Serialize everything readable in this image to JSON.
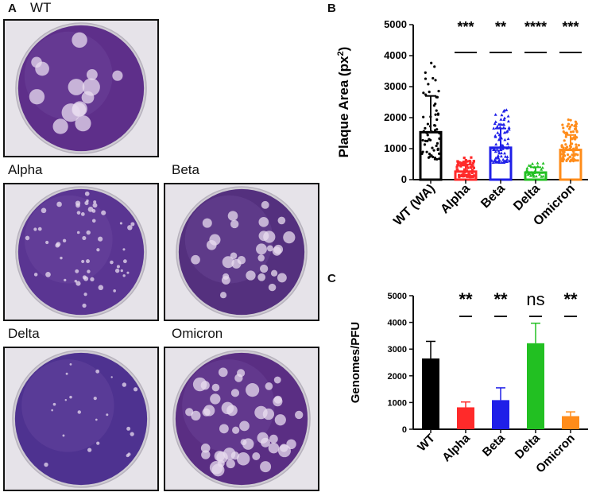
{
  "panel_labels": {
    "a": "A",
    "b": "B",
    "c": "C"
  },
  "plates": [
    {
      "label": "WT",
      "tint": "#5e2f8a",
      "density": "sparse-large"
    },
    {
      "label": "Alpha",
      "tint": "#5a3592",
      "density": "many-small"
    },
    {
      "label": "Beta",
      "tint": "#54307e",
      "density": "medium"
    },
    {
      "label": "Delta",
      "tint": "#4e3290",
      "density": "few-small"
    },
    {
      "label": "Omicron",
      "tint": "#5a2e83",
      "density": "many-medium"
    }
  ],
  "colors": {
    "WT": "#000000",
    "Alpha": "#ff2a2a",
    "Beta": "#1f1fe8",
    "Delta": "#22c022",
    "Omicron": "#ff8c1a"
  },
  "chart_data": [
    {
      "panel": "B",
      "type": "bar",
      "ylabel_main": "Plaque Area (px",
      "ylabel_sup": "2",
      "ylabel_close": ")",
      "ylim": [
        0,
        5000
      ],
      "yticks": [
        "0",
        "1000",
        "2000",
        "3000",
        "4000",
        "5000"
      ],
      "categories": [
        "WT (WA)",
        "Alpha",
        "Beta",
        "Delta",
        "Omicron"
      ],
      "values": [
        1530,
        260,
        1030,
        230,
        960
      ],
      "error": [
        1170,
        230,
        620,
        170,
        480
      ],
      "significance": [
        "",
        "***",
        "**",
        "****",
        "***"
      ],
      "points_shown": true
    },
    {
      "panel": "C",
      "type": "bar",
      "ylabel": "Genomes/PFU",
      "ylim": [
        0,
        5000
      ],
      "yticks": [
        "0",
        "1000",
        "2000",
        "3000",
        "4000",
        "5000"
      ],
      "categories": [
        "WT",
        "Alpha",
        "Beta",
        "Delta",
        "Omicron"
      ],
      "values": [
        2650,
        820,
        1090,
        3220,
        490
      ],
      "error": [
        640,
        200,
        460,
        750,
        160
      ],
      "significance": [
        "",
        "**",
        "**",
        "ns",
        "**"
      ]
    }
  ]
}
